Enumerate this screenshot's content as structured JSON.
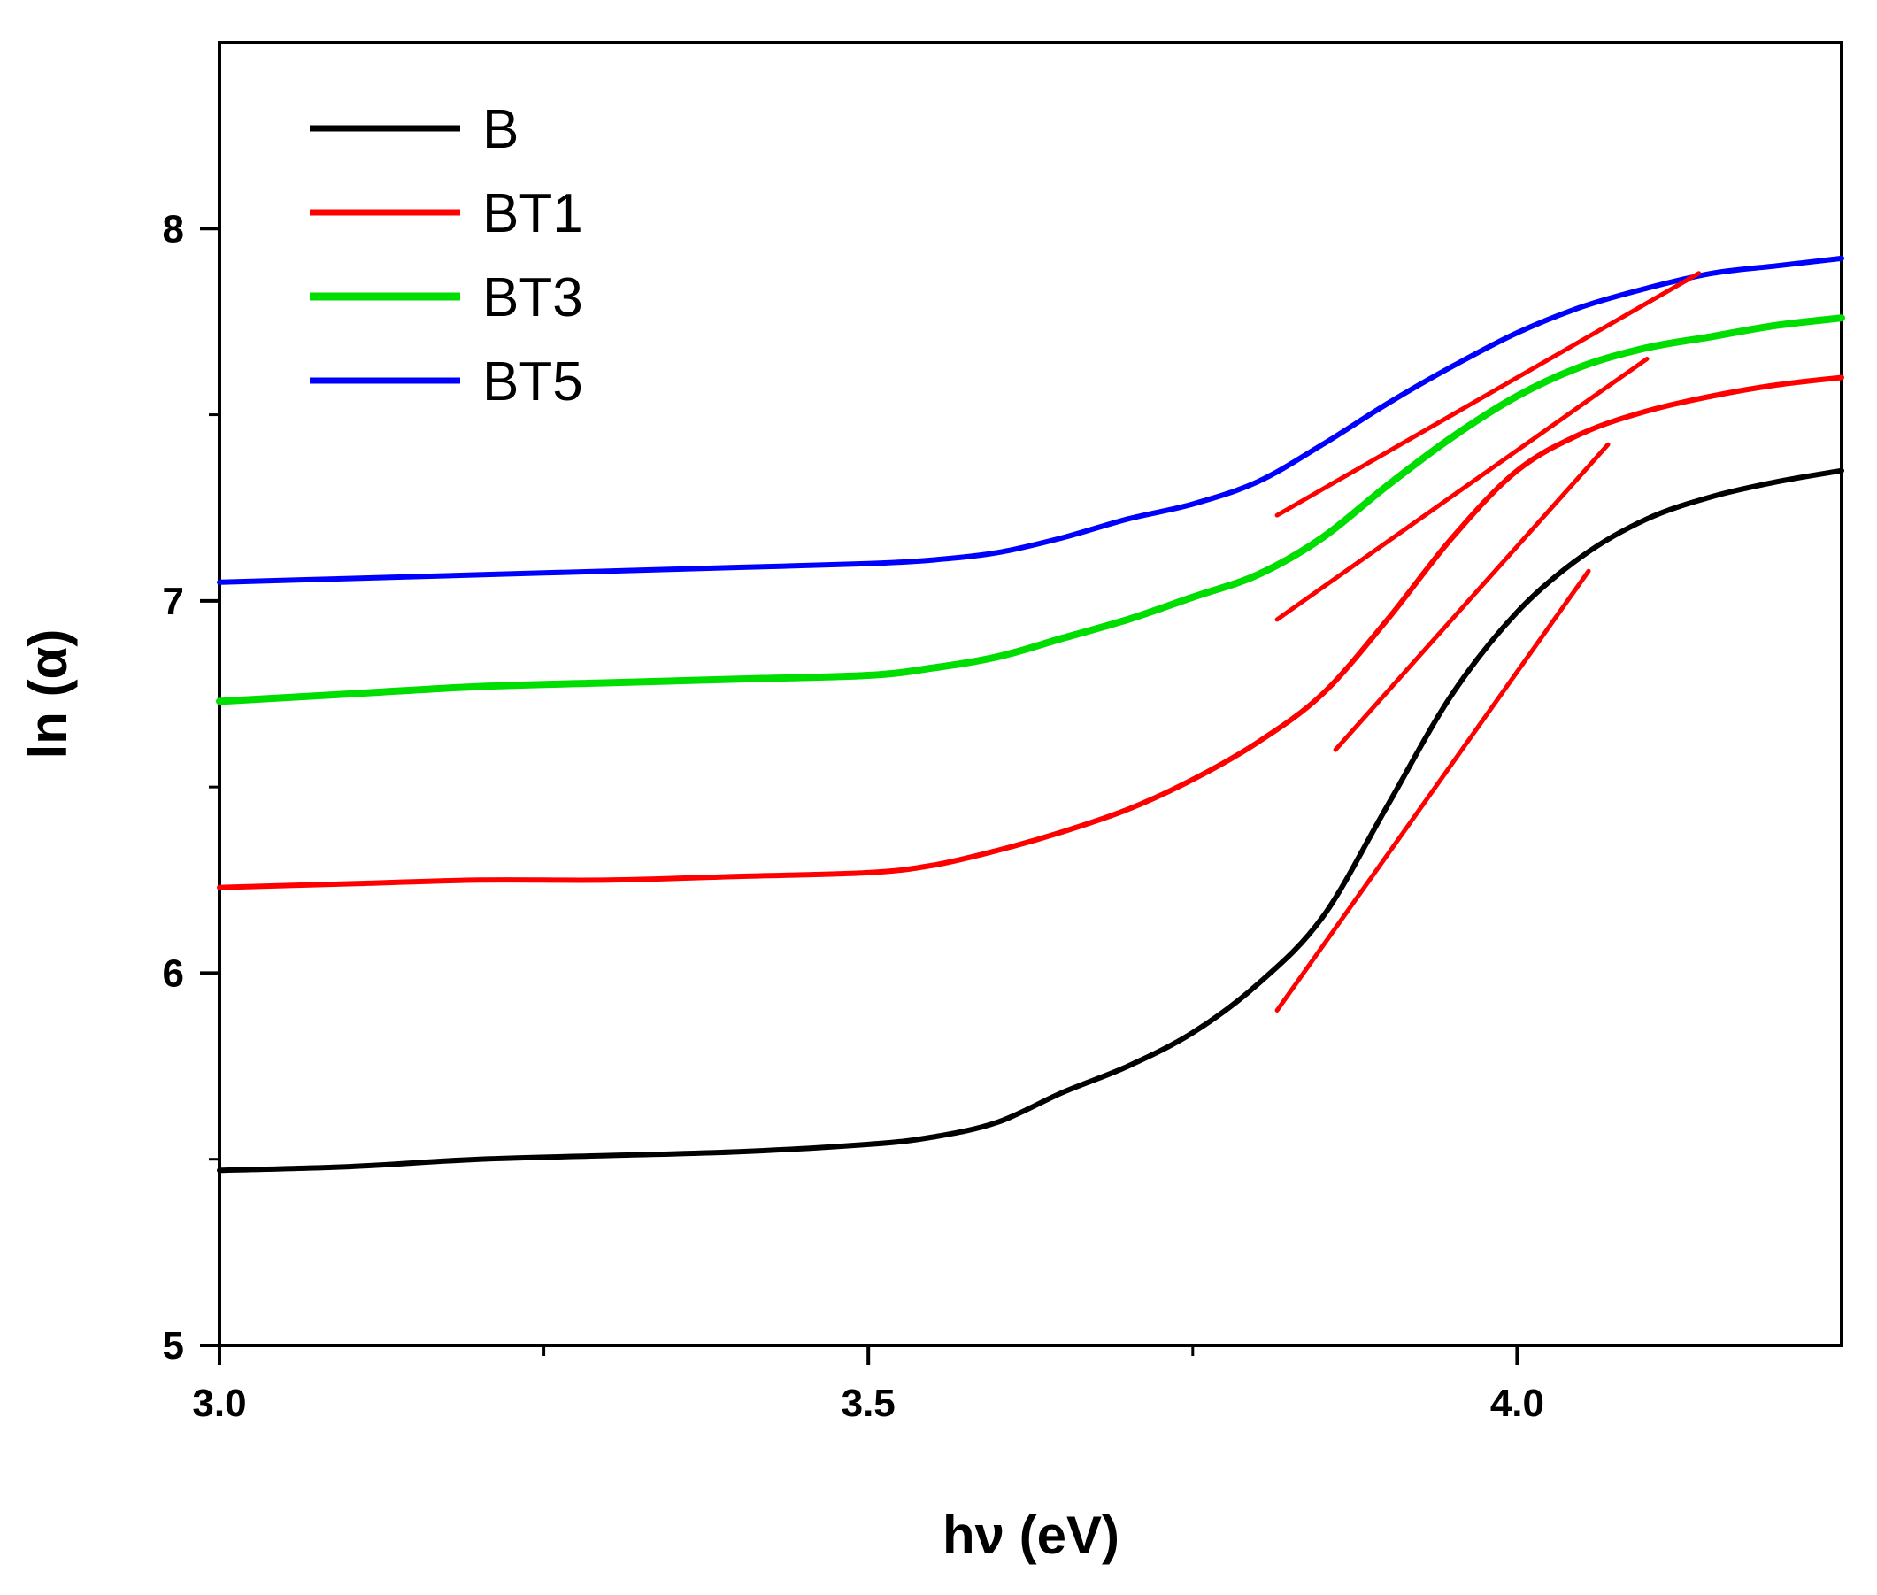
{
  "chart_data": {
    "type": "line",
    "title": "",
    "xlabel": "hν (eV)",
    "ylabel": "ln (α)",
    "xlim": [
      3.0,
      4.25
    ],
    "ylim": [
      5,
      8.5
    ],
    "x_ticks": [
      {
        "value": 3.0,
        "label": "3.0"
      },
      {
        "value": 3.5,
        "label": "3.5"
      },
      {
        "value": 4.0,
        "label": "4.0"
      }
    ],
    "x_minor_ticks": [
      3.25,
      3.75
    ],
    "y_ticks": [
      {
        "value": 5,
        "label": "5"
      },
      {
        "value": 6,
        "label": "6"
      },
      {
        "value": 7,
        "label": "7"
      },
      {
        "value": 8,
        "label": "8"
      }
    ],
    "y_minor_ticks": [
      5.5,
      6.5,
      7.5
    ],
    "grid": false,
    "legend_position": "top-left",
    "series": [
      {
        "name": "B",
        "color": "#000000",
        "x": [
          3.0,
          3.1,
          3.2,
          3.3,
          3.4,
          3.5,
          3.55,
          3.6,
          3.65,
          3.7,
          3.75,
          3.8,
          3.85,
          3.9,
          3.95,
          4.0,
          4.05,
          4.1,
          4.15,
          4.2,
          4.25
        ],
        "y": [
          5.47,
          5.48,
          5.5,
          5.51,
          5.52,
          5.54,
          5.56,
          5.6,
          5.68,
          5.75,
          5.84,
          5.97,
          6.15,
          6.45,
          6.75,
          6.97,
          7.12,
          7.22,
          7.28,
          7.32,
          7.35
        ]
      },
      {
        "name": "BT1",
        "color": "#ff0000",
        "x": [
          3.0,
          3.1,
          3.2,
          3.3,
          3.4,
          3.5,
          3.55,
          3.6,
          3.65,
          3.7,
          3.75,
          3.8,
          3.85,
          3.9,
          3.95,
          4.0,
          4.05,
          4.1,
          4.15,
          4.2,
          4.25
        ],
        "y": [
          6.23,
          6.24,
          6.25,
          6.25,
          6.26,
          6.27,
          6.29,
          6.33,
          6.38,
          6.44,
          6.52,
          6.62,
          6.75,
          6.95,
          7.17,
          7.35,
          7.45,
          7.51,
          7.55,
          7.58,
          7.6
        ]
      },
      {
        "name": "BT3",
        "color": "#00dd00",
        "x": [
          3.0,
          3.1,
          3.2,
          3.3,
          3.4,
          3.5,
          3.55,
          3.6,
          3.65,
          3.7,
          3.75,
          3.8,
          3.85,
          3.9,
          3.95,
          4.0,
          4.05,
          4.1,
          4.15,
          4.2,
          4.25
        ],
        "y": [
          6.73,
          6.75,
          6.77,
          6.78,
          6.79,
          6.8,
          6.82,
          6.85,
          6.9,
          6.95,
          7.01,
          7.07,
          7.17,
          7.31,
          7.44,
          7.55,
          7.63,
          7.68,
          7.71,
          7.74,
          7.76
        ]
      },
      {
        "name": "BT5",
        "color": "#0000ff",
        "x": [
          3.0,
          3.1,
          3.2,
          3.3,
          3.4,
          3.5,
          3.55,
          3.6,
          3.65,
          3.7,
          3.75,
          3.8,
          3.85,
          3.9,
          3.95,
          4.0,
          4.05,
          4.1,
          4.15,
          4.2,
          4.25
        ],
        "y": [
          7.05,
          7.06,
          7.07,
          7.08,
          7.09,
          7.1,
          7.11,
          7.13,
          7.17,
          7.22,
          7.26,
          7.32,
          7.42,
          7.53,
          7.63,
          7.72,
          7.79,
          7.84,
          7.88,
          7.9,
          7.92
        ]
      }
    ],
    "fit_lines": [
      {
        "target": "B",
        "color": "#ff0000",
        "x": [
          3.815,
          4.055
        ],
        "y": [
          5.9,
          7.08
        ]
      },
      {
        "target": "BT1",
        "color": "#ff0000",
        "x": [
          3.86,
          4.07
        ],
        "y": [
          6.6,
          7.42
        ]
      },
      {
        "target": "BT3",
        "color": "#ff0000",
        "x": [
          3.815,
          4.1
        ],
        "y": [
          6.95,
          7.65
        ]
      },
      {
        "target": "BT5",
        "color": "#ff0000",
        "x": [
          3.815,
          4.14
        ],
        "y": [
          7.23,
          7.88
        ]
      }
    ]
  }
}
